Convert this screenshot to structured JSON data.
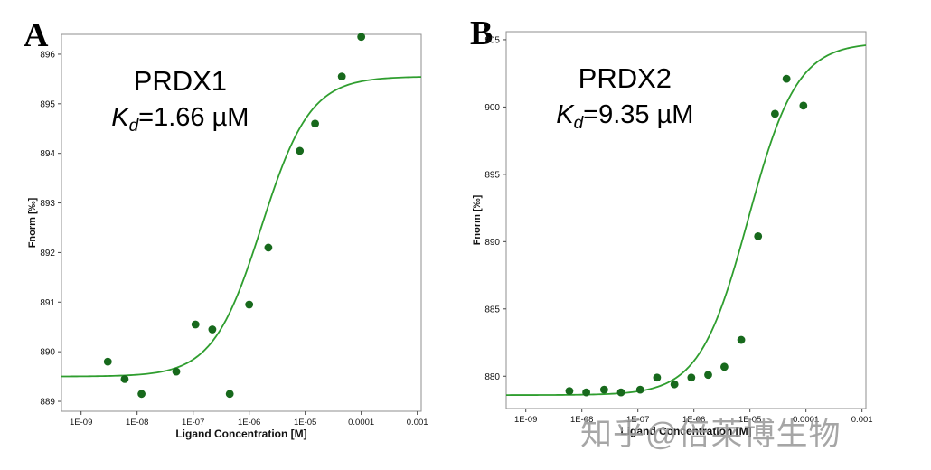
{
  "page": {
    "background": "#ffffff"
  },
  "panels": [
    {
      "label": "A"
    },
    {
      "label": "B"
    }
  ],
  "watermark": {
    "text": "知乎@倍莱博生物",
    "color": "#9a9a9a"
  },
  "chart_data": [
    {
      "type": "scatter",
      "title": "PRDX1",
      "kd_label": {
        "symbol": "K",
        "subscript": "d",
        "value": "=1.66 µM"
      },
      "xlabel": "Ligand Concentration [M]",
      "ylabel": "Fnorm [‰]",
      "x_tick_labels": [
        "1E-09",
        "1E-08",
        "1E-07",
        "1E-06",
        "1E-05",
        "0.0001",
        "0.001"
      ],
      "x_tick_values": [
        1e-09,
        1e-08,
        1e-07,
        1e-06,
        1e-05,
        0.0001,
        0.001
      ],
      "xlim_log": [
        -9.35,
        -2.93
      ],
      "y_ticks": [
        889,
        890,
        891,
        892,
        893,
        894,
        895,
        896
      ],
      "ylim": [
        888.8,
        896.4
      ],
      "grid": false,
      "legend": false,
      "points": {
        "x": [
          3e-09,
          6e-09,
          1.2e-08,
          5e-08,
          1.1e-07,
          2.2e-07,
          4.5e-07,
          1e-06,
          2.2e-06,
          8e-06,
          1.5e-05,
          4.5e-05,
          0.0001
        ],
        "y": [
          889.8,
          889.45,
          889.15,
          889.6,
          890.55,
          890.45,
          889.15,
          890.95,
          892.1,
          894.05,
          894.6,
          895.55,
          896.35
        ]
      },
      "fit": {
        "model": "one-site-binding",
        "low": 889.5,
        "high": 895.55,
        "kd_molar": 1.66e-06
      },
      "colors": {
        "curve": "#2f9e2f",
        "points": "#17691c",
        "axis": "#8f8f8f"
      }
    },
    {
      "type": "scatter",
      "title": "PRDX2",
      "kd_label": {
        "symbol": "K",
        "subscript": "d",
        "value": "=9.35 µM"
      },
      "xlabel": "Ligand Concentration [M]",
      "ylabel": "Fnorm [‰]",
      "x_tick_labels": [
        "1E-09",
        "1E-08",
        "1E-07",
        "1E-06",
        "1E-05",
        "0.0001",
        "0.001"
      ],
      "x_tick_values": [
        1e-09,
        1e-08,
        1e-07,
        1e-06,
        1e-05,
        0.0001,
        0.001
      ],
      "xlim_log": [
        -9.35,
        -2.93
      ],
      "y_ticks": [
        880,
        885,
        890,
        895,
        900,
        905
      ],
      "ylim": [
        877.6,
        905.6
      ],
      "grid": false,
      "legend": false,
      "points": {
        "x": [
          6e-09,
          1.2e-08,
          2.5e-08,
          5e-08,
          1.1e-07,
          2.2e-07,
          4.5e-07,
          9e-07,
          1.8e-06,
          3.5e-06,
          7e-06,
          1.4e-05,
          2.8e-05,
          4.5e-05,
          9e-05
        ],
        "y": [
          878.9,
          878.8,
          879.0,
          878.8,
          879.0,
          879.9,
          879.4,
          879.9,
          880.1,
          880.7,
          882.7,
          890.4,
          899.5,
          902.1,
          900.1
        ]
      },
      "fit": {
        "model": "one-site-binding",
        "low": 878.6,
        "high": 904.8,
        "kd_molar": 9.35e-06
      },
      "colors": {
        "curve": "#2f9e2f",
        "points": "#17691c",
        "axis": "#8f8f8f"
      }
    }
  ]
}
